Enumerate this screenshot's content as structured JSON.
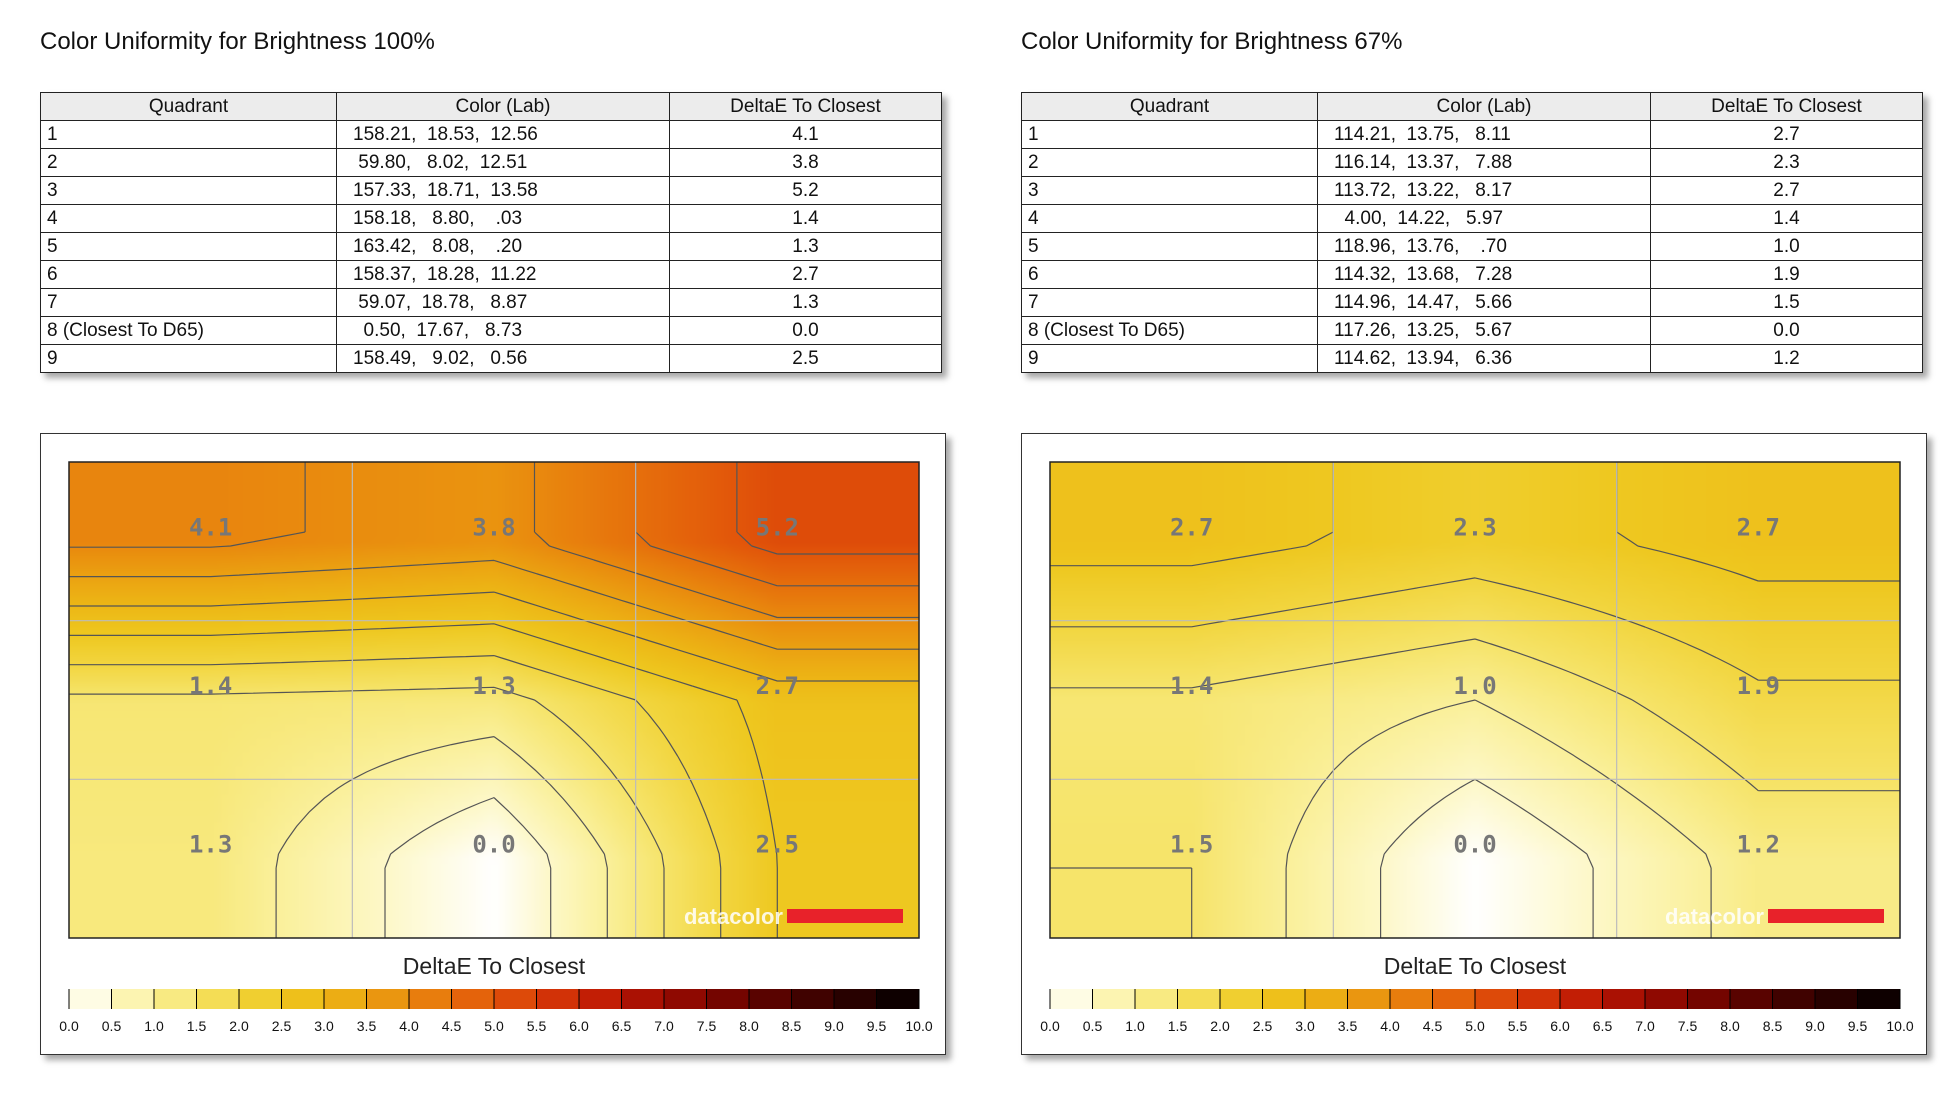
{
  "chart_data": [
    {
      "type": "heatmap",
      "title": "Color Uniformity for Brightness 100%",
      "table": {
        "columns": [
          "Quadrant",
          "Color (Lab)",
          "DeltaE To Closest"
        ],
        "rows": [
          [
            "1",
            "158.21,  18.53,  12.56",
            "4.1"
          ],
          [
            "2",
            " 59.80,   8.02,  12.51",
            "3.8"
          ],
          [
            "3",
            "157.33,  18.71,  13.58",
            "5.2"
          ],
          [
            "4",
            "158.18,   8.80,    .03",
            "1.4"
          ],
          [
            "5",
            "163.42,   8.08,    .20",
            "1.3"
          ],
          [
            "6",
            "158.37,  18.28,  11.22",
            "2.7"
          ],
          [
            "7",
            " 59.07,  18.78,   8.87",
            "1.3"
          ],
          [
            "8 (Closest To D65)",
            "  0.50,  17.67,   8.73",
            "0.0"
          ],
          [
            "9",
            "158.49,   9.02,   0.56",
            "2.5"
          ]
        ]
      },
      "grid_values": [
        [
          "4.1",
          "3.8",
          "5.2"
        ],
        [
          "1.4",
          "1.3",
          "2.7"
        ],
        [
          "1.3",
          "0.0",
          "2.5"
        ]
      ],
      "watermark": "datacolor",
      "legend": {
        "title": "DeltaE To Closest",
        "ticks": [
          "0.0",
          "0.5",
          "1.0",
          "1.5",
          "2.0",
          "2.5",
          "3.0",
          "3.5",
          "4.0",
          "4.5",
          "5.0",
          "5.5",
          "6.0",
          "6.5",
          "7.0",
          "7.5",
          "8.0",
          "8.5",
          "9.0",
          "9.5",
          "10.0"
        ],
        "range": [
          0,
          10
        ]
      }
    },
    {
      "type": "heatmap",
      "title": "Color Uniformity for Brightness 67%",
      "table": {
        "columns": [
          "Quadrant",
          "Color (Lab)",
          "DeltaE To Closest"
        ],
        "rows": [
          [
            "1",
            "114.21,  13.75,   8.11",
            "2.7"
          ],
          [
            "2",
            "116.14,  13.37,   7.88",
            "2.3"
          ],
          [
            "3",
            "113.72,  13.22,   8.17",
            "2.7"
          ],
          [
            "4",
            "  4.00,  14.22,   5.97",
            "1.4"
          ],
          [
            "5",
            "118.96,  13.76,    .70",
            "1.0"
          ],
          [
            "6",
            "114.32,  13.68,   7.28",
            "1.9"
          ],
          [
            "7",
            "114.96,  14.47,   5.66",
            "1.5"
          ],
          [
            "8 (Closest To D65)",
            "117.26,  13.25,   5.67",
            "0.0"
          ],
          [
            "9",
            "114.62,  13.94,   6.36",
            "1.2"
          ]
        ]
      },
      "grid_values": [
        [
          "2.7",
          "2.3",
          "2.7"
        ],
        [
          "1.4",
          "1.0",
          "1.9"
        ],
        [
          "1.5",
          "0.0",
          "1.2"
        ]
      ],
      "watermark": "datacolor",
      "legend": {
        "title": "DeltaE To Closest",
        "ticks": [
          "0.0",
          "0.5",
          "1.0",
          "1.5",
          "2.0",
          "2.5",
          "3.0",
          "3.5",
          "4.0",
          "4.5",
          "5.0",
          "5.5",
          "6.0",
          "6.5",
          "7.0",
          "7.5",
          "8.0",
          "8.5",
          "9.0",
          "9.5",
          "10.0"
        ],
        "range": [
          0,
          10
        ]
      }
    }
  ],
  "colors": {
    "scale": [
      "#ffffff",
      "#fdf8c8",
      "#faf09a",
      "#f6e46a",
      "#f2d640",
      "#eec820",
      "#edb716",
      "#eba212",
      "#e98a0e",
      "#e6700c",
      "#e2560a",
      "#d83d08",
      "#cc2606",
      "#b71604",
      "#9c0c02",
      "#820600",
      "#660300",
      "#4c0200",
      "#330100",
      "#1c0000",
      "#000000"
    ],
    "watermark_bar": "#e8222a",
    "contour": "#555555",
    "gridline": "#bbbbbb"
  }
}
